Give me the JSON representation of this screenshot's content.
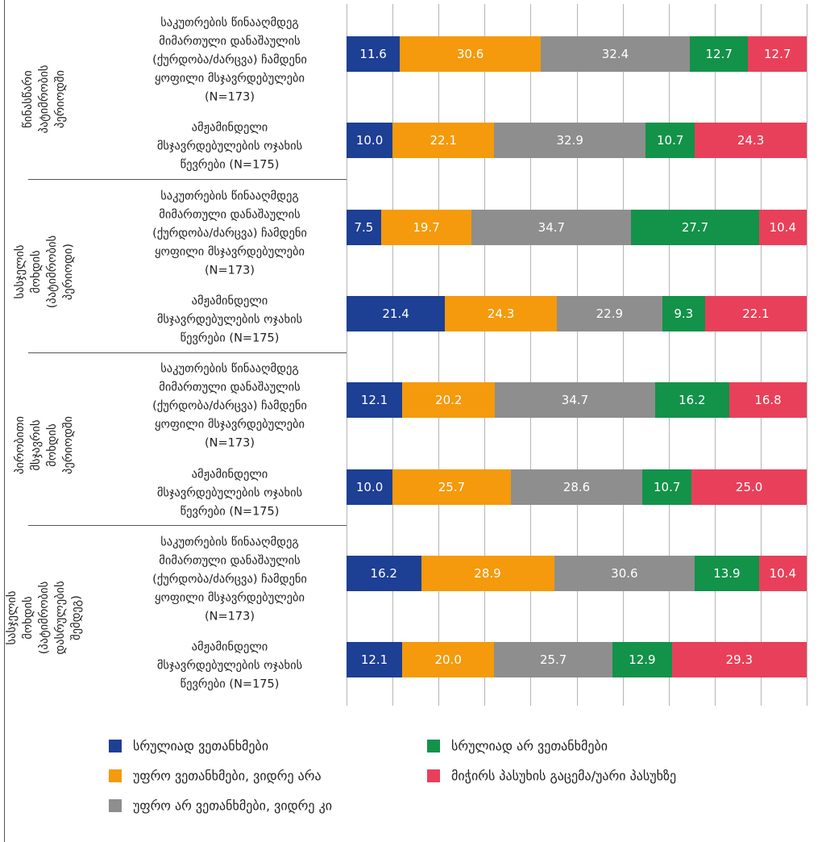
{
  "chart_data": {
    "type": "bar",
    "orientation": "horizontal",
    "stacked": true,
    "groups": [
      "წინასწარი\nპატიმრობის\nპერიოდში",
      "სასჯელის\nმოხდის\n(პატიმრობის\nპერიოდი)",
      "პირობითი\nმსჯავრის\nმოხდის\nპერიოდში",
      "სასჯელის\nმოხდის\n(პატიმრობის\nდასრულების\nშემდეგ)"
    ],
    "categories": [
      "საკუთრების წინააღმდეგ\nმიმართული დანაშაულის\n(ქურდობა/ძარცვა) ჩამდენი\nყოფილი მსჯავრდებულები\n(N=173)",
      "ამჟამინდელი\nმსჯავრდებულების ოჯახის\nწევრები (N=175)",
      "საკუთრების წინააღმდეგ\nმიმართული დანაშაულის\n(ქურდობა/ძარცვა) ჩამდენი\nყოფილი მსჯავრდებულები\n(N=173)",
      "ამჟამინდელი\nმსჯავრდებულების ოჯახის\nწევრები (N=175)",
      "საკუთრების წინააღმდეგ\nმიმართული დანაშაულის\n(ქურდობა/ძარცვა) ჩამდენი\nყოფილი მსჯავრდებულები\n(N=173)",
      "ამჟამინდელი\nმსჯავრდებულების ოჯახის\nწევრები (N=175)",
      "საკუთრების წინააღმდეგ\nმიმართული დანაშაულის\n(ქურდობა/ძარცვა) ჩამდენი\nყოფილი მსჯავრდებულები\n(N=173)",
      "ამჟამინდელი\nმსჯავრდებულების ოჯახის\nწევრები (N=175)"
    ],
    "series": [
      {
        "name": "სრულიად ვეთანხმები",
        "color": "#1d3f94",
        "values": [
          11.6,
          10.0,
          7.5,
          21.4,
          12.1,
          10.0,
          16.2,
          12.1
        ],
        "value_labels": [
          "11.6",
          "10.0",
          "7.5",
          "21.4",
          "12.1",
          "10.0",
          "16.2",
          "12.1"
        ]
      },
      {
        "name": "უფრო ვეთანხმები, ვიდრე არა",
        "color": "#f49a0c",
        "values": [
          30.6,
          22.1,
          19.7,
          24.3,
          20.2,
          25.7,
          28.9,
          20.0
        ],
        "value_labels": [
          "30.6",
          "22.1",
          "19.7",
          "24.3",
          "20.2",
          "25.7",
          "28.9",
          "20.0"
        ]
      },
      {
        "name": "უფრო არ ვეთანხმები, ვიდრე კი",
        "color": "#8e8e8e",
        "values": [
          32.4,
          32.9,
          34.7,
          22.9,
          34.7,
          28.6,
          30.6,
          25.7
        ],
        "value_labels": [
          "32.4",
          "32.9",
          "34.7",
          "22.9",
          "34.7",
          "28.6",
          "30.6",
          "25.7"
        ]
      },
      {
        "name": "სრულიად არ ვეთანხმები",
        "color": "#13924a",
        "values": [
          12.7,
          10.7,
          27.7,
          9.3,
          16.2,
          10.7,
          13.9,
          12.9
        ],
        "value_labels": [
          "12.7",
          "10.7",
          "27.7",
          "9.3",
          "16.2",
          "10.7",
          "13.9",
          "12.9"
        ]
      },
      {
        "name": "მიჭირს პასუხის გაცემა/უარი პასუხზე",
        "color": "#e8405a",
        "values": [
          12.7,
          24.3,
          10.4,
          22.1,
          16.8,
          25.0,
          10.4,
          29.3
        ],
        "value_labels": [
          "12.7",
          "24.3",
          "10.4",
          "22.1",
          "16.8",
          "25.0",
          "10.4",
          "29.3"
        ]
      }
    ],
    "xlim": [
      0,
      100
    ],
    "xticks": [
      0,
      10,
      20,
      30,
      40,
      50,
      60,
      70,
      80,
      90,
      100
    ],
    "grid": true
  }
}
